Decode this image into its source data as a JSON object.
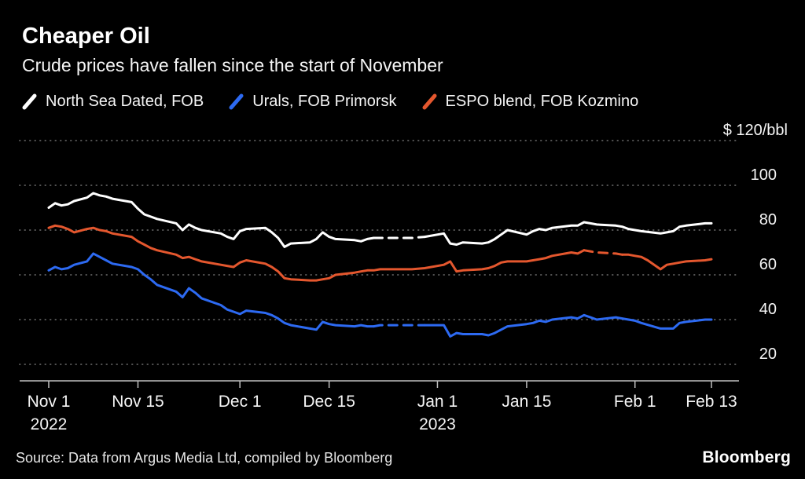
{
  "header": {
    "title": "Cheaper Oil",
    "subtitle": "Crude prices have fallen since the start of November"
  },
  "legend": [
    {
      "label": "North Sea Dated, FOB",
      "color": "#ffffff"
    },
    {
      "label": "Urals, FOB Primorsk",
      "color": "#2d6af2"
    },
    {
      "label": "ESPO blend, FOB Kozmino",
      "color": "#e4572e"
    }
  ],
  "footer": {
    "source": "Source: Data from Argus Media Ltd, compiled by Bloomberg",
    "logo": "Bloomberg"
  },
  "chart_data": {
    "type": "line",
    "title": "Cheaper Oil",
    "subtitle": "Crude prices have fallen since the start of November",
    "ylabel": "$/bbl",
    "ylim": [
      20,
      120
    ],
    "grid": "dotted horizontal",
    "legend_position": "top",
    "y_axis": [
      {
        "v": 120,
        "label": "$ 120/bbl"
      },
      {
        "v": 100,
        "label": "100"
      },
      {
        "v": 80,
        "label": "80"
      },
      {
        "v": 60,
        "label": "60"
      },
      {
        "v": 40,
        "label": "40"
      },
      {
        "v": 20,
        "label": "20"
      }
    ],
    "x_axis": {
      "unit": "days since Nov 1 2022",
      "range": [
        0,
        104
      ],
      "ticks": [
        {
          "day": 0,
          "label": "Nov 1",
          "year": "2022"
        },
        {
          "day": 14,
          "label": "Nov 15"
        },
        {
          "day": 30,
          "label": "Dec 1"
        },
        {
          "day": 44,
          "label": "Dec 15"
        },
        {
          "day": 61,
          "label": "Jan 1",
          "year": "2023"
        },
        {
          "day": 75,
          "label": "Jan 15"
        },
        {
          "day": 92,
          "label": "Feb 1"
        },
        {
          "day": 104,
          "label": "Feb 13"
        }
      ]
    },
    "series": [
      {
        "name": "North Sea Dated, FOB",
        "color": "#ffffff",
        "dash_ranges": [
          [
            51,
            60
          ]
        ],
        "points": [
          [
            0,
            90
          ],
          [
            1,
            92
          ],
          [
            2,
            91
          ],
          [
            3,
            91.5
          ],
          [
            4,
            93
          ],
          [
            6,
            94.5
          ],
          [
            7,
            96.5
          ],
          [
            8,
            95.5
          ],
          [
            9,
            95
          ],
          [
            10,
            94
          ],
          [
            13,
            92.5
          ],
          [
            14,
            89.5
          ],
          [
            15,
            87
          ],
          [
            16,
            86
          ],
          [
            17,
            85
          ],
          [
            20,
            83
          ],
          [
            21,
            80
          ],
          [
            22,
            82.5
          ],
          [
            23,
            81
          ],
          [
            24,
            80
          ],
          [
            27,
            78.5
          ],
          [
            28,
            77
          ],
          [
            29,
            76
          ],
          [
            30,
            79.5
          ],
          [
            31,
            80.5
          ],
          [
            34,
            81
          ],
          [
            35,
            79
          ],
          [
            36,
            76.5
          ],
          [
            37,
            72.5
          ],
          [
            38,
            74
          ],
          [
            41,
            74.5
          ],
          [
            42,
            76
          ],
          [
            43,
            79
          ],
          [
            44,
            77
          ],
          [
            45,
            76
          ],
          [
            48,
            75.5
          ],
          [
            49,
            75
          ],
          [
            50,
            76
          ],
          [
            51,
            76.5
          ],
          [
            52,
            76.5
          ],
          [
            55,
            76.5
          ],
          [
            57,
            76.5
          ],
          [
            59,
            77
          ],
          [
            62,
            78.5
          ],
          [
            63,
            74
          ],
          [
            64,
            73.5
          ],
          [
            65,
            74.5
          ],
          [
            68,
            74
          ],
          [
            69,
            74.5
          ],
          [
            70,
            76
          ],
          [
            71,
            78
          ],
          [
            72,
            80
          ],
          [
            75,
            78
          ],
          [
            76,
            79.5
          ],
          [
            77,
            80.5
          ],
          [
            78,
            80
          ],
          [
            79,
            81
          ],
          [
            82,
            82
          ],
          [
            83,
            82
          ],
          [
            84,
            83.5
          ],
          [
            85,
            83
          ],
          [
            86,
            82.5
          ],
          [
            89,
            82
          ],
          [
            90,
            81.5
          ],
          [
            91,
            80.5
          ],
          [
            92,
            80
          ],
          [
            93,
            79.5
          ],
          [
            96,
            78.5
          ],
          [
            97,
            79
          ],
          [
            98,
            79.5
          ],
          [
            99,
            81.5
          ],
          [
            100,
            82
          ],
          [
            103,
            83
          ],
          [
            104,
            83
          ]
        ]
      },
      {
        "name": "Urals, FOB Primorsk",
        "color": "#2d6af2",
        "dash_ranges": [
          [
            51,
            60
          ]
        ],
        "points": [
          [
            0,
            62
          ],
          [
            1,
            63.5
          ],
          [
            2,
            62.5
          ],
          [
            3,
            63
          ],
          [
            4,
            64.5
          ],
          [
            6,
            66
          ],
          [
            7,
            69.5
          ],
          [
            8,
            68
          ],
          [
            9,
            66.5
          ],
          [
            10,
            65
          ],
          [
            13,
            63.5
          ],
          [
            14,
            62.5
          ],
          [
            15,
            60
          ],
          [
            16,
            58
          ],
          [
            17,
            55.5
          ],
          [
            20,
            52.5
          ],
          [
            21,
            50
          ],
          [
            22,
            54
          ],
          [
            23,
            52
          ],
          [
            24,
            49.5
          ],
          [
            27,
            46.5
          ],
          [
            28,
            44.5
          ],
          [
            29,
            43.5
          ],
          [
            30,
            42.5
          ],
          [
            31,
            44
          ],
          [
            34,
            43
          ],
          [
            35,
            42
          ],
          [
            36,
            40.5
          ],
          [
            37,
            38.5
          ],
          [
            38,
            37.5
          ],
          [
            41,
            36
          ],
          [
            42,
            35.5
          ],
          [
            43,
            39
          ],
          [
            44,
            38
          ],
          [
            45,
            37.5
          ],
          [
            48,
            37
          ],
          [
            49,
            37.5
          ],
          [
            50,
            37
          ],
          [
            51,
            37
          ],
          [
            52,
            37.5
          ],
          [
            55,
            37.5
          ],
          [
            57,
            37.5
          ],
          [
            59,
            37.5
          ],
          [
            62,
            37.5
          ],
          [
            63,
            32.5
          ],
          [
            64,
            34
          ],
          [
            65,
            33.5
          ],
          [
            68,
            33.5
          ],
          [
            69,
            33
          ],
          [
            70,
            34
          ],
          [
            71,
            35.5
          ],
          [
            72,
            37
          ],
          [
            75,
            38
          ],
          [
            76,
            38.5
          ],
          [
            77,
            39.5
          ],
          [
            78,
            39
          ],
          [
            79,
            40
          ],
          [
            82,
            41
          ],
          [
            83,
            40.5
          ],
          [
            84,
            42
          ],
          [
            85,
            41
          ],
          [
            86,
            40
          ],
          [
            89,
            41
          ],
          [
            90,
            40.5
          ],
          [
            91,
            40
          ],
          [
            92,
            39.5
          ],
          [
            93,
            38.5
          ],
          [
            96,
            36
          ],
          [
            97,
            36
          ],
          [
            98,
            36
          ],
          [
            99,
            38.5
          ],
          [
            100,
            39
          ],
          [
            103,
            40
          ],
          [
            104,
            40
          ]
        ]
      },
      {
        "name": "ESPO blend, FOB Kozmino",
        "color": "#e4572e",
        "dash_ranges": [
          [
            84,
            90
          ]
        ],
        "points": [
          [
            0,
            81
          ],
          [
            1,
            82
          ],
          [
            2,
            81.5
          ],
          [
            3,
            80.5
          ],
          [
            4,
            79
          ],
          [
            6,
            80.5
          ],
          [
            7,
            81
          ],
          [
            8,
            80
          ],
          [
            9,
            79.5
          ],
          [
            10,
            78.5
          ],
          [
            13,
            77
          ],
          [
            14,
            75
          ],
          [
            15,
            73.5
          ],
          [
            16,
            72
          ],
          [
            17,
            71
          ],
          [
            20,
            69
          ],
          [
            21,
            67.5
          ],
          [
            22,
            68
          ],
          [
            23,
            67
          ],
          [
            24,
            66
          ],
          [
            27,
            64.5
          ],
          [
            28,
            64
          ],
          [
            29,
            63.5
          ],
          [
            30,
            65.5
          ],
          [
            31,
            66.5
          ],
          [
            34,
            65
          ],
          [
            35,
            63.5
          ],
          [
            36,
            61.5
          ],
          [
            37,
            58.5
          ],
          [
            38,
            58
          ],
          [
            41,
            57.5
          ],
          [
            42,
            57.5
          ],
          [
            43,
            58
          ],
          [
            44,
            58.5
          ],
          [
            45,
            60
          ],
          [
            48,
            61
          ],
          [
            49,
            61.5
          ],
          [
            50,
            62
          ],
          [
            51,
            62
          ],
          [
            52,
            62.5
          ],
          [
            55,
            62.5
          ],
          [
            57,
            62.5
          ],
          [
            59,
            63
          ],
          [
            62,
            64.5
          ],
          [
            63,
            66
          ],
          [
            64,
            61.5
          ],
          [
            65,
            62
          ],
          [
            68,
            62.5
          ],
          [
            69,
            63
          ],
          [
            70,
            64
          ],
          [
            71,
            65.5
          ],
          [
            72,
            66
          ],
          [
            75,
            66
          ],
          [
            76,
            66.5
          ],
          [
            77,
            67
          ],
          [
            78,
            67.5
          ],
          [
            79,
            68.5
          ],
          [
            82,
            70
          ],
          [
            83,
            69.5
          ],
          [
            84,
            71
          ],
          [
            85,
            70.5
          ],
          [
            86,
            70
          ],
          [
            89,
            69.5
          ],
          [
            90,
            69
          ],
          [
            91,
            69
          ],
          [
            92,
            68.5
          ],
          [
            93,
            68
          ],
          [
            94,
            66.5
          ],
          [
            96,
            62.5
          ],
          [
            97,
            64.5
          ],
          [
            98,
            65
          ],
          [
            99,
            65.5
          ],
          [
            100,
            66
          ],
          [
            103,
            66.5
          ],
          [
            104,
            67
          ]
        ]
      }
    ]
  }
}
